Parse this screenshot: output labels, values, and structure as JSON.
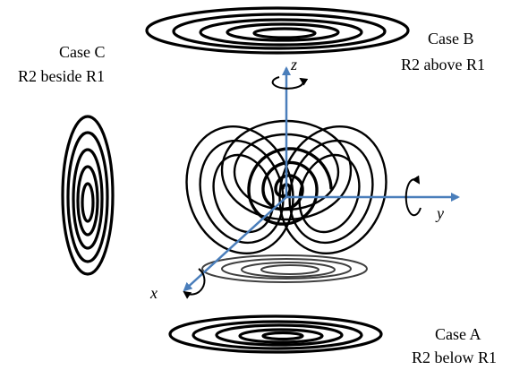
{
  "cases": {
    "case_a": {
      "title": "Case A",
      "subtitle": "R2 below R1"
    },
    "case_b": {
      "title": "Case B",
      "subtitle": "R2 above R1"
    },
    "case_c": {
      "title": "Case C",
      "subtitle": "R2 beside R1"
    }
  },
  "axes": {
    "x": "x",
    "y": "y",
    "z": "z"
  },
  "colors": {
    "axis": "#4a7ebb",
    "coil": "#000000",
    "shadow": "#777777"
  }
}
